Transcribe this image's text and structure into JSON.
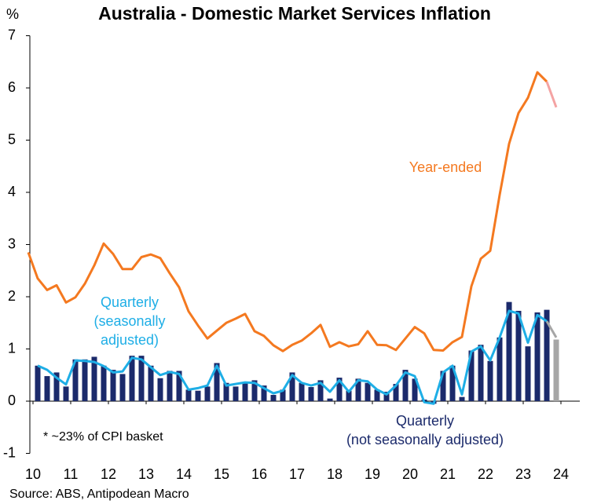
{
  "chart_data": {
    "type": "line",
    "title": "Australia - Domestic Market Services Inflation",
    "y_label": "%",
    "source": "Source: ABS, Antipodean Macro",
    "footnote": "* ~23% of CPI basket",
    "xlim": [
      2009.875,
      2024.5
    ],
    "xticks": [
      {
        "value": 2010,
        "label": "10"
      },
      {
        "value": 2011,
        "label": "11"
      },
      {
        "value": 2012,
        "label": "12"
      },
      {
        "value": 2013,
        "label": "13"
      },
      {
        "value": 2014,
        "label": "14"
      },
      {
        "value": 2015,
        "label": "15"
      },
      {
        "value": 2016,
        "label": "16"
      },
      {
        "value": 2017,
        "label": "17"
      },
      {
        "value": 2018,
        "label": "18"
      },
      {
        "value": 2019,
        "label": "19"
      },
      {
        "value": 2020,
        "label": "20"
      },
      {
        "value": 2021,
        "label": "21"
      },
      {
        "value": 2022,
        "label": "22"
      },
      {
        "value": 2023,
        "label": "23"
      },
      {
        "value": 2024,
        "label": "24"
      }
    ],
    "ylim": [
      -1,
      7
    ],
    "yticks": [
      -1,
      0,
      1,
      2,
      3,
      4,
      5,
      6,
      7
    ],
    "grid": false,
    "x": [
      2009.875,
      2010.125,
      2010.375,
      2010.625,
      2010.875,
      2011.125,
      2011.375,
      2011.625,
      2011.875,
      2012.125,
      2012.375,
      2012.625,
      2012.875,
      2013.125,
      2013.375,
      2013.625,
      2013.875,
      2014.125,
      2014.375,
      2014.625,
      2014.875,
      2015.125,
      2015.375,
      2015.625,
      2015.875,
      2016.125,
      2016.375,
      2016.625,
      2016.875,
      2017.125,
      2017.375,
      2017.625,
      2017.875,
      2018.125,
      2018.375,
      2018.625,
      2018.875,
      2019.125,
      2019.375,
      2019.625,
      2019.875,
      2020.125,
      2020.375,
      2020.625,
      2020.875,
      2021.125,
      2021.375,
      2021.625,
      2021.875,
      2022.125,
      2022.375,
      2022.625,
      2022.875,
      2023.125,
      2023.375,
      2023.625,
      2023.875
    ],
    "series": [
      {
        "name": "Quarterly (not seasonally adjusted)",
        "type": "bar",
        "color": "#1b2a6b",
        "last_color": "#a6a6a6",
        "values": [
          null,
          0.68,
          0.48,
          0.55,
          0.28,
          0.8,
          0.8,
          0.85,
          0.68,
          0.6,
          0.52,
          0.87,
          0.87,
          0.68,
          0.44,
          0.58,
          0.58,
          0.22,
          0.2,
          0.28,
          0.73,
          0.35,
          0.28,
          0.35,
          0.4,
          0.3,
          0.12,
          0.22,
          0.55,
          0.35,
          0.27,
          0.4,
          0.05,
          0.45,
          0.2,
          0.43,
          0.35,
          0.22,
          0.18,
          0.33,
          0.6,
          0.43,
          0.03,
          -0.05,
          0.58,
          0.68,
          0.08,
          0.97,
          1.08,
          0.77,
          1.22,
          1.9,
          1.73,
          1.05,
          1.7,
          1.75,
          1.18
        ]
      },
      {
        "name": "Quarterly (seasonally adjusted)",
        "type": "line",
        "color": "#1eaee6",
        "last_color": "#a6a6a6",
        "values": [
          null,
          0.68,
          0.6,
          0.45,
          0.32,
          0.78,
          0.77,
          0.75,
          0.67,
          0.55,
          0.57,
          0.83,
          0.8,
          0.65,
          0.5,
          0.56,
          0.52,
          0.22,
          0.25,
          0.3,
          0.68,
          0.3,
          0.33,
          0.36,
          0.35,
          0.25,
          0.15,
          0.2,
          0.5,
          0.35,
          0.3,
          0.35,
          0.18,
          0.4,
          0.18,
          0.4,
          0.38,
          0.22,
          0.13,
          0.3,
          0.55,
          0.48,
          -0.02,
          -0.05,
          0.55,
          0.68,
          0.13,
          0.95,
          1.05,
          0.78,
          1.22,
          1.73,
          1.68,
          1.12,
          1.65,
          1.53,
          1.22
        ]
      },
      {
        "name": "Year-ended",
        "type": "line",
        "color": "#f47920",
        "last_color": "#f4a3a3",
        "values": [
          2.85,
          2.35,
          2.13,
          2.22,
          1.89,
          1.99,
          2.25,
          2.6,
          3.02,
          2.82,
          2.53,
          2.53,
          2.76,
          2.81,
          2.74,
          2.45,
          2.18,
          1.72,
          1.45,
          1.2,
          1.35,
          1.5,
          1.58,
          1.67,
          1.34,
          1.25,
          1.07,
          0.96,
          1.08,
          1.16,
          1.3,
          1.46,
          1.04,
          1.13,
          1.05,
          1.09,
          1.34,
          1.08,
          1.07,
          0.98,
          1.2,
          1.42,
          1.3,
          0.98,
          0.97,
          1.13,
          1.23,
          2.2,
          2.73,
          2.88,
          3.95,
          4.93,
          5.52,
          5.81,
          6.3,
          6.12,
          5.63
        ]
      }
    ],
    "annotations": [
      {
        "lines": [
          "Year-ended"
        ],
        "color": "#f47920"
      },
      {
        "lines": [
          "Quarterly",
          "(seasonally",
          "adjusted)"
        ],
        "color": "#1eaee6"
      },
      {
        "lines": [
          "Quarterly",
          "(not seasonally adjusted)"
        ],
        "color": "#1b2a6b"
      }
    ]
  }
}
